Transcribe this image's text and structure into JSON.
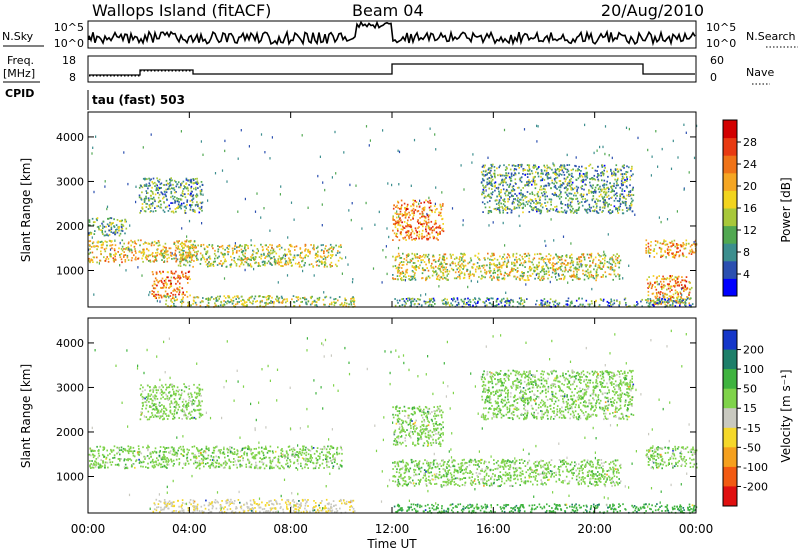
{
  "header": {
    "station": "Wallops Island (fitACF)",
    "beam": "Beam 04",
    "date": "20/Aug/2010"
  },
  "noise_panel": {
    "left_label": "N.Sky",
    "right_label": "N.Search",
    "left_ticks": [
      "10^5",
      "10^0"
    ],
    "right_ticks": [
      "10^5",
      "10^0"
    ]
  },
  "freq_panel": {
    "left_label_1": "Freq.",
    "left_label_2": "[MHz]",
    "cpid_label": "CPID",
    "right_label": "Nave",
    "left_ticks": [
      "18",
      "8"
    ],
    "right_ticks": [
      "60",
      "0"
    ]
  },
  "cpid_panel": {
    "text": "tau (fast) 503"
  },
  "power_colorbar": {
    "label": "Power [dB]",
    "ticks": [
      "4",
      "8",
      "12",
      "16",
      "20",
      "24",
      "28"
    ],
    "colors": [
      "#0000ff",
      "#2b4fb0",
      "#3c8e8e",
      "#51a851",
      "#a8c83a",
      "#f2d41e",
      "#f5a623",
      "#ef7318",
      "#e83a12",
      "#d20000"
    ]
  },
  "velocity_colorbar": {
    "label": "Velocity [m s⁻¹]",
    "ticks": [
      "200",
      "100",
      "50",
      "15",
      "-15",
      "-50",
      "-100",
      "-200"
    ],
    "colors": [
      "#1537c9",
      "#1e7f6a",
      "#3fb33f",
      "#7fd34a",
      "#c9c9c0",
      "#f5d82a",
      "#f5a01e",
      "#f25a12",
      "#e01010"
    ]
  },
  "chart_data": [
    {
      "type": "heatmap",
      "name": "power",
      "ylabel": "Slant Range [km]",
      "yticks": [
        1000,
        2000,
        3000,
        4000
      ],
      "ylim": [
        180,
        4560
      ],
      "xlim": [
        0,
        24
      ],
      "xticks": [
        "00:00",
        "04:00",
        "08:00",
        "12:00",
        "16:00",
        "20:00",
        "00:00"
      ],
      "grid": false,
      "regions": [
        {
          "t0": 0.0,
          "t1": 4.2,
          "r0": 1200,
          "r1": 1700,
          "value": 18
        },
        {
          "t0": 0.0,
          "t1": 1.5,
          "r0": 1800,
          "r1": 2200,
          "value": 11
        },
        {
          "t0": 2.0,
          "t1": 4.5,
          "r0": 2300,
          "r1": 3100,
          "value": 10
        },
        {
          "t0": 3.5,
          "t1": 10.0,
          "r0": 1100,
          "r1": 1600,
          "value": 15
        },
        {
          "t0": 2.5,
          "t1": 4.0,
          "r0": 400,
          "r1": 1000,
          "value": 22
        },
        {
          "t0": 3.0,
          "t1": 10.5,
          "r0": 200,
          "r1": 450,
          "value": 14
        },
        {
          "t0": 12.0,
          "t1": 14.0,
          "r0": 1700,
          "r1": 2600,
          "value": 22
        },
        {
          "t0": 12.0,
          "t1": 21.0,
          "r0": 800,
          "r1": 1400,
          "value": 16
        },
        {
          "t0": 15.5,
          "t1": 21.5,
          "r0": 2300,
          "r1": 3400,
          "value": 10
        },
        {
          "t0": 22.0,
          "t1": 24.0,
          "r0": 1300,
          "r1": 1700,
          "value": 20
        },
        {
          "t0": 22.0,
          "t1": 23.8,
          "r0": 250,
          "r1": 900,
          "value": 21
        },
        {
          "t0": 12.0,
          "t1": 24.0,
          "r0": 200,
          "r1": 400,
          "value": 9
        }
      ]
    },
    {
      "type": "heatmap",
      "name": "velocity",
      "ylabel": "Slant Range [km]",
      "xlabel": "Time UT",
      "yticks": [
        1000,
        2000,
        3000,
        4000
      ],
      "ylim": [
        180,
        4560
      ],
      "xlim": [
        0,
        24
      ],
      "xticks": [
        "00:00",
        "04:00",
        "08:00",
        "12:00",
        "16:00",
        "20:00",
        "00:00"
      ],
      "grid": false,
      "regions": [
        {
          "t0": 0.0,
          "t1": 10.0,
          "r0": 1200,
          "r1": 1700,
          "value": 0
        },
        {
          "t0": 2.0,
          "t1": 4.5,
          "r0": 2300,
          "r1": 3100,
          "value": 0
        },
        {
          "t0": 12.0,
          "t1": 21.0,
          "r0": 800,
          "r1": 1400,
          "value": 0
        },
        {
          "t0": 12.0,
          "t1": 14.0,
          "r0": 1700,
          "r1": 2600,
          "value": 0
        },
        {
          "t0": 15.5,
          "t1": 21.5,
          "r0": 2300,
          "r1": 3400,
          "value": 0
        },
        {
          "t0": 2.5,
          "t1": 10.5,
          "r0": 200,
          "r1": 500,
          "value": -45
        },
        {
          "t0": 12.0,
          "t1": 24.0,
          "r0": 200,
          "r1": 400,
          "value": 35
        },
        {
          "t0": 22.0,
          "t1": 24.0,
          "r0": 1200,
          "r1": 1700,
          "value": 0
        }
      ]
    }
  ]
}
